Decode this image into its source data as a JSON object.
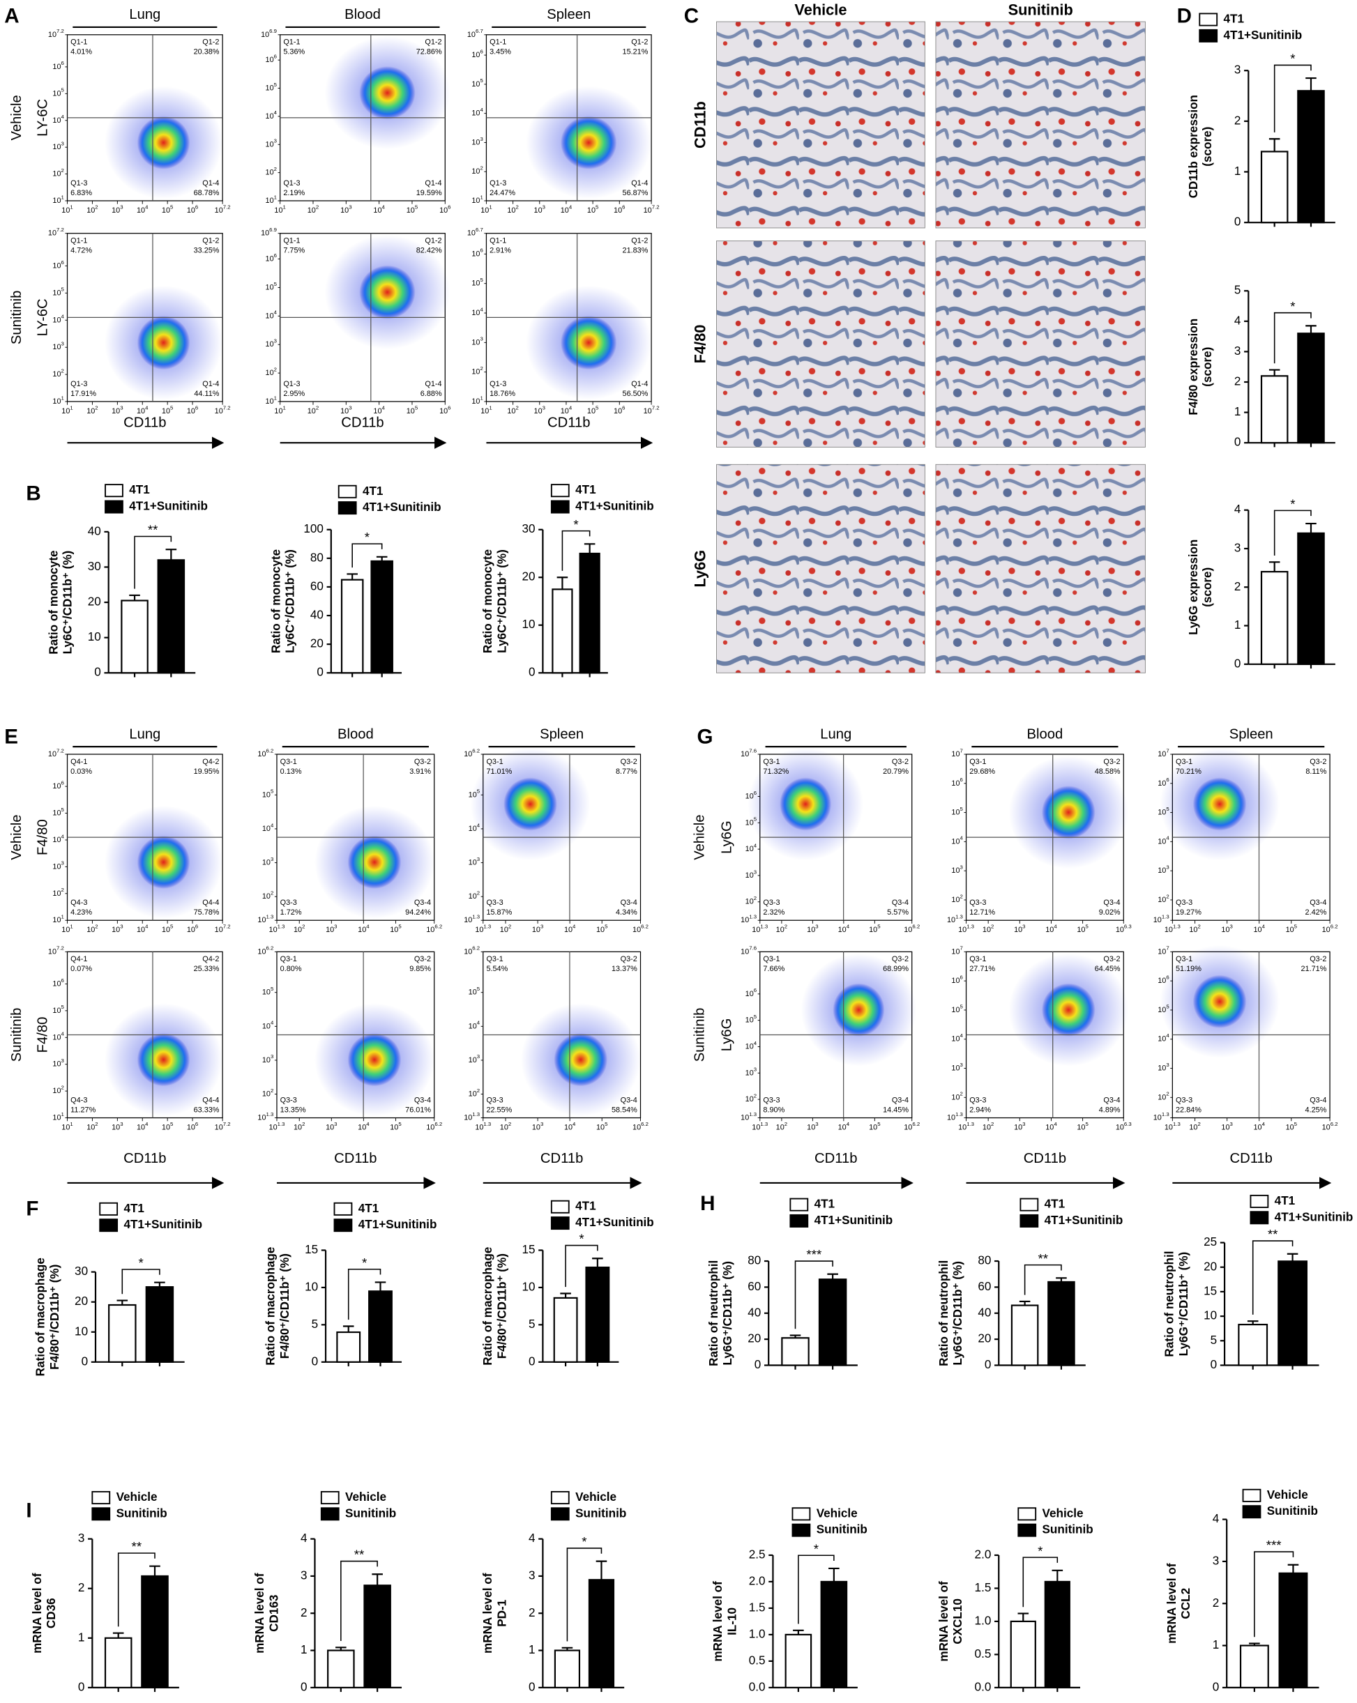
{
  "panel_labels": [
    "A",
    "B",
    "C",
    "D",
    "E",
    "F",
    "G",
    "H",
    "I"
  ],
  "tick_base": "10",
  "flow": [
    {
      "xlabel": "CD11b",
      "columns": [
        {
          "title": "Lung",
          "quadrants": [
            "Q1-1",
            "Q1-2",
            "Q1-3",
            "Q1-4"
          ],
          "xticks": [
            "1",
            "2",
            "3",
            "4",
            "5",
            "6",
            "7.2"
          ],
          "yticks": [
            "1",
            "2",
            "3",
            "4",
            "5",
            "6",
            "7.2"
          ]
        },
        {
          "title": "Blood",
          "quadrants": [
            "Q1-1",
            "Q1-2",
            "Q1-3",
            "Q1-4"
          ],
          "xticks": [
            "1",
            "2",
            "3",
            "4",
            "5",
            "6"
          ],
          "yticks": [
            "1",
            "2",
            "3",
            "4",
            "5",
            "6",
            "6.9"
          ]
        },
        {
          "title": "Spleen",
          "quadrants": [
            "Q1-1",
            "Q1-2",
            "Q1-3",
            "Q1-4"
          ],
          "xticks": [
            "1",
            "2",
            "3",
            "4",
            "5",
            "6",
            "7.2"
          ],
          "yticks": [
            "1",
            "2",
            "3",
            "4",
            "5",
            "6",
            "6.7"
          ]
        }
      ],
      "rows": [
        {
          "label": "Vehicle",
          "ylabel": "LY-6C",
          "plots": [
            [
              "4.01%",
              "20.38%",
              "6.83%",
              "68.78%"
            ],
            [
              "5.36%",
              "72.86%",
              "2.19%",
              "19.59%"
            ],
            [
              "3.45%",
              "15.21%",
              "24.47%",
              "56.87%"
            ]
          ]
        },
        {
          "label": "Sunitinib",
          "ylabel": "LY-6C",
          "plots": [
            [
              "4.72%",
              "33.25%",
              "17.91%",
              "44.11%"
            ],
            [
              "7.75%",
              "82.42%",
              "2.95%",
              "6.88%"
            ],
            [
              "2.91%",
              "21.83%",
              "18.76%",
              "56.50%"
            ]
          ]
        }
      ]
    },
    {
      "xlabel": "CD11b",
      "columns": [
        {
          "title": "Lung",
          "quadrants": [
            "Q4-1",
            "Q4-2",
            "Q4-3",
            "Q4-4"
          ],
          "xticks": [
            "1",
            "2",
            "3",
            "4",
            "5",
            "6",
            "7.2"
          ],
          "yticks": [
            "1",
            "2",
            "3",
            "4",
            "5",
            "6",
            "7.2"
          ]
        },
        {
          "title": "Blood",
          "quadrants": [
            "Q3-1",
            "Q3-2",
            "Q3-3",
            "Q3-4"
          ],
          "xticks": [
            "1.3",
            "2",
            "3",
            "4",
            "5",
            "6.2"
          ],
          "yticks": [
            "1.3",
            "2",
            "3",
            "4",
            "5",
            "6.2"
          ]
        },
        {
          "title": "Spleen",
          "quadrants": [
            "Q3-1",
            "Q3-2",
            "Q3-3",
            "Q3-4"
          ],
          "xticks": [
            "1.3",
            "2",
            "3",
            "4",
            "5",
            "6.2"
          ],
          "yticks": [
            "1.3",
            "2",
            "3",
            "4",
            "5",
            "6.2"
          ]
        }
      ],
      "rows": [
        {
          "label": "Vehicle",
          "ylabel": "F4/80",
          "plots": [
            [
              "0.03%",
              "19.95%",
              "4.23%",
              "75.78%"
            ],
            [
              "0.13%",
              "3.91%",
              "1.72%",
              "94.24%"
            ],
            [
              "71.01%",
              "8.77%",
              "15.87%",
              "4.34%"
            ]
          ]
        },
        {
          "label": "Sunitinib",
          "ylabel": "F4/80",
          "plots": [
            [
              "0.07%",
              "25.33%",
              "11.27%",
              "63.33%"
            ],
            [
              "0.80%",
              "9.85%",
              "13.35%",
              "76.01%"
            ],
            [
              "5.54%",
              "13.37%",
              "22.55%",
              "58.54%"
            ]
          ]
        }
      ]
    },
    {
      "xlabel": "CD11b",
      "columns": [
        {
          "title": "Lung",
          "quadrants": [
            "Q3-1",
            "Q3-2",
            "Q3-3",
            "Q3-4"
          ],
          "xticks": [
            "1.3",
            "2",
            "3",
            "4",
            "5",
            "6.2"
          ],
          "yticks": [
            "1.3",
            "2",
            "3",
            "4",
            "5",
            "6",
            "7.6"
          ]
        },
        {
          "title": "Blood",
          "quadrants": [
            "Q3-1",
            "Q3-2",
            "Q3-3",
            "Q3-4"
          ],
          "xticks": [
            "1.3",
            "2",
            "3",
            "4",
            "5",
            "6.3"
          ],
          "yticks": [
            "1.3",
            "2",
            "3",
            "4",
            "5",
            "6",
            "7"
          ]
        },
        {
          "title": "Spleen",
          "quadrants": [
            "Q3-1",
            "Q3-2",
            "Q3-3",
            "Q3-4"
          ],
          "xticks": [
            "1.3",
            "2",
            "3",
            "4",
            "5",
            "6.2"
          ],
          "yticks": [
            "1.3",
            "2",
            "3",
            "4",
            "5",
            "6",
            "7"
          ]
        }
      ],
      "rows": [
        {
          "label": "Vehicle",
          "ylabel": "Ly6G",
          "plots": [
            [
              "71.32%",
              "20.79%",
              "2.32%",
              "5.57%"
            ],
            [
              "29.68%",
              "48.58%",
              "12.71%",
              "9.02%"
            ],
            [
              "70.21%",
              "8.11%",
              "19.27%",
              "2.42%"
            ]
          ]
        },
        {
          "label": "Sunitinib",
          "ylabel": "Ly6G",
          "plots": [
            [
              "7.66%",
              "68.99%",
              "8.90%",
              "14.45%"
            ],
            [
              "27.71%",
              "64.45%",
              "2.94%",
              "4.89%"
            ],
            [
              "51.19%",
              "21.71%",
              "22.84%",
              "4.25%"
            ]
          ]
        }
      ]
    }
  ],
  "histology": {
    "columns": [
      "Vehicle",
      "Sunitinib"
    ],
    "rows": [
      "CD11b",
      "F4/80",
      "Ly6G"
    ]
  },
  "chart_data": [
    {
      "type": "bar",
      "ylabel": [
        "Ratio of monocyte",
        "Ly6C⁺/CD11b⁺ (%)"
      ],
      "series": [
        {
          "name": "4T1",
          "color": "#ffffff",
          "values": [
            20.5
          ],
          "errors": [
            1.5
          ]
        },
        {
          "name": "4T1+Sunitinib",
          "color": "#000000",
          "values": [
            32
          ],
          "errors": [
            3
          ]
        }
      ],
      "ylim": [
        0,
        40
      ],
      "yticks": [
        0,
        10,
        20,
        30,
        40
      ],
      "significance": "**"
    },
    {
      "type": "bar",
      "ylabel": [
        "Ratio of monocyte",
        "Ly6C⁺/CD11b⁺ (%)"
      ],
      "series": [
        {
          "name": "4T1",
          "color": "#ffffff",
          "values": [
            65
          ],
          "errors": [
            4
          ]
        },
        {
          "name": "4T1+Sunitinib",
          "color": "#000000",
          "values": [
            78
          ],
          "errors": [
            3
          ]
        }
      ],
      "ylim": [
        0,
        100
      ],
      "yticks": [
        0,
        20,
        40,
        60,
        80,
        100
      ],
      "significance": "*"
    },
    {
      "type": "bar",
      "ylabel": [
        "Ratio of monocyte",
        "Ly6C⁺/CD11b⁺ (%)"
      ],
      "series": [
        {
          "name": "4T1",
          "color": "#ffffff",
          "values": [
            17.5
          ],
          "errors": [
            2.5
          ]
        },
        {
          "name": "4T1+Sunitinib",
          "color": "#000000",
          "values": [
            25
          ],
          "errors": [
            2
          ]
        }
      ],
      "ylim": [
        0,
        30
      ],
      "yticks": [
        0,
        10,
        20,
        30
      ],
      "significance": "*"
    },
    {
      "type": "bar",
      "ylabel": [
        "CD11b expression",
        "(score)"
      ],
      "series": [
        {
          "name": "4T1",
          "color": "#ffffff",
          "values": [
            1.4
          ],
          "errors": [
            0.25
          ]
        },
        {
          "name": "4T1+Sunitinib",
          "color": "#000000",
          "values": [
            2.6
          ],
          "errors": [
            0.25
          ]
        }
      ],
      "ylim": [
        0,
        3
      ],
      "yticks": [
        0,
        1,
        2,
        3
      ],
      "significance": "*"
    },
    {
      "type": "bar",
      "ylabel": [
        "F4/80 expression",
        "(score)"
      ],
      "series": [
        {
          "color": "#ffffff",
          "values": [
            2.2
          ],
          "errors": [
            0.2
          ]
        },
        {
          "color": "#000000",
          "values": [
            3.6
          ],
          "errors": [
            0.25
          ]
        }
      ],
      "ylim": [
        0,
        5
      ],
      "yticks": [
        0,
        1,
        2,
        3,
        4,
        5
      ],
      "significance": "*"
    },
    {
      "type": "bar",
      "ylabel": [
        "Ly6G expression",
        "(score)"
      ],
      "series": [
        {
          "color": "#ffffff",
          "values": [
            2.4
          ],
          "errors": [
            0.25
          ]
        },
        {
          "color": "#000000",
          "values": [
            3.4
          ],
          "errors": [
            0.25
          ]
        }
      ],
      "ylim": [
        0,
        4
      ],
      "yticks": [
        0,
        1,
        2,
        3,
        4
      ],
      "significance": "*"
    },
    {
      "type": "bar",
      "ylabel": [
        "Ratio of macrophage",
        "F4/80⁺/CD11b⁺ (%)"
      ],
      "series": [
        {
          "name": "4T1",
          "color": "#ffffff",
          "values": [
            19
          ],
          "errors": [
            1.5
          ]
        },
        {
          "name": "4T1+Sunitinib",
          "color": "#000000",
          "values": [
            25
          ],
          "errors": [
            1.5
          ]
        }
      ],
      "ylim": [
        0,
        30
      ],
      "yticks": [
        0,
        10,
        20,
        30
      ],
      "significance": "*"
    },
    {
      "type": "bar",
      "ylabel": [
        "Ratio of macrophage",
        "F4/80⁺/CD11b⁺ (%)"
      ],
      "series": [
        {
          "name": "4T1",
          "color": "#ffffff",
          "values": [
            4
          ],
          "errors": [
            0.8
          ]
        },
        {
          "name": "4T1+Sunitinib",
          "color": "#000000",
          "values": [
            9.5
          ],
          "errors": [
            1.2
          ]
        }
      ],
      "ylim": [
        0,
        15
      ],
      "yticks": [
        0,
        5,
        10,
        15
      ],
      "significance": "*"
    },
    {
      "type": "bar",
      "ylabel": [
        "Ratio of macrophage",
        "F4/80⁺/CD11b⁺ (%)"
      ],
      "series": [
        {
          "name": "4T1",
          "color": "#ffffff",
          "values": [
            8.6
          ],
          "errors": [
            0.6
          ]
        },
        {
          "name": "4T1+Sunitinib",
          "color": "#000000",
          "values": [
            12.7
          ],
          "errors": [
            1.2
          ]
        }
      ],
      "ylim": [
        0,
        15
      ],
      "yticks": [
        0,
        5,
        10,
        15
      ],
      "significance": "*"
    },
    {
      "type": "bar",
      "ylabel": [
        "Ratio of neutrophil",
        "Ly6G⁺/CD11b⁺ (%)"
      ],
      "series": [
        {
          "name": "4T1",
          "color": "#ffffff",
          "values": [
            21
          ],
          "errors": [
            2
          ]
        },
        {
          "name": "4T1+Sunitinib",
          "color": "#000000",
          "values": [
            66
          ],
          "errors": [
            4
          ]
        }
      ],
      "ylim": [
        0,
        80
      ],
      "yticks": [
        0,
        20,
        40,
        60,
        80
      ],
      "significance": "***"
    },
    {
      "type": "bar",
      "ylabel": [
        "Ratio of neutrophil",
        "Ly6G⁺/CD11b⁺ (%)"
      ],
      "series": [
        {
          "name": "4T1",
          "color": "#ffffff",
          "values": [
            46
          ],
          "errors": [
            3
          ]
        },
        {
          "name": "4T1+Sunitinib",
          "color": "#000000",
          "values": [
            64
          ],
          "errors": [
            3
          ]
        }
      ],
      "ylim": [
        0,
        80
      ],
      "yticks": [
        0,
        20,
        40,
        60,
        80
      ],
      "significance": "**"
    },
    {
      "type": "bar",
      "ylabel": [
        "Ratio of neutrophil",
        "Ly6G⁺/CD11b⁺ (%)"
      ],
      "series": [
        {
          "name": "4T1",
          "color": "#ffffff",
          "values": [
            8.3
          ],
          "errors": [
            0.7
          ]
        },
        {
          "name": "4T1+Sunitinib",
          "color": "#000000",
          "values": [
            21.2
          ],
          "errors": [
            1.5
          ]
        }
      ],
      "ylim": [
        0,
        25
      ],
      "yticks": [
        0,
        5,
        10,
        15,
        20,
        25
      ],
      "significance": "**"
    },
    {
      "type": "bar",
      "ylabel": [
        "mRNA level of",
        "CD36"
      ],
      "series": [
        {
          "name": "Vehicle",
          "color": "#ffffff",
          "values": [
            1
          ],
          "errors": [
            0.1
          ]
        },
        {
          "name": "Sunitinib",
          "color": "#000000",
          "values": [
            2.25
          ],
          "errors": [
            0.2
          ]
        }
      ],
      "ylim": [
        0,
        3
      ],
      "yticks": [
        0,
        1,
        2,
        3
      ],
      "significance": "**"
    },
    {
      "type": "bar",
      "ylabel": [
        "mRNA level of",
        "CD163"
      ],
      "series": [
        {
          "name": "Vehicle",
          "color": "#ffffff",
          "values": [
            1
          ],
          "errors": [
            0.08
          ]
        },
        {
          "name": "Sunitinib",
          "color": "#000000",
          "values": [
            2.75
          ],
          "errors": [
            0.3
          ]
        }
      ],
      "ylim": [
        0,
        4
      ],
      "yticks": [
        0,
        1,
        2,
        3,
        4
      ],
      "significance": "**"
    },
    {
      "type": "bar",
      "ylabel": [
        "mRNA level of",
        "PD-1"
      ],
      "series": [
        {
          "name": "Vehicle",
          "color": "#ffffff",
          "values": [
            1
          ],
          "errors": [
            0.07
          ]
        },
        {
          "name": "Sunitinib",
          "color": "#000000",
          "values": [
            2.9
          ],
          "errors": [
            0.5
          ]
        }
      ],
      "ylim": [
        0,
        4
      ],
      "yticks": [
        0,
        1,
        2,
        3,
        4
      ],
      "significance": "*"
    },
    {
      "type": "bar",
      "ylabel": [
        "mRNA level of",
        "IL-10"
      ],
      "series": [
        {
          "name": "Vehicle",
          "color": "#ffffff",
          "values": [
            1
          ],
          "errors": [
            0.08
          ]
        },
        {
          "name": "Sunitinib",
          "color": "#000000",
          "values": [
            2
          ],
          "errors": [
            0.25
          ]
        }
      ],
      "ylim": [
        0,
        2.5
      ],
      "yticks": [
        {
          "value": 0,
          "label": "0.0"
        },
        0.5,
        {
          "value": 1,
          "label": "1.0"
        },
        1.5,
        {
          "value": 2,
          "label": "2.0"
        },
        2.5
      ],
      "significance": "*"
    },
    {
      "type": "bar",
      "ylabel": [
        "mRNA level of",
        "CXCL10"
      ],
      "series": [
        {
          "name": "Vehicle",
          "color": "#ffffff",
          "values": [
            1
          ],
          "errors": [
            0.12
          ]
        },
        {
          "name": "Sunitinib",
          "color": "#000000",
          "values": [
            1.6
          ],
          "errors": [
            0.17
          ]
        }
      ],
      "ylim": [
        0,
        2
      ],
      "yticks": [
        {
          "value": 0,
          "label": "0.0"
        },
        0.5,
        {
          "value": 1,
          "label": "1.0"
        },
        1.5,
        {
          "value": 2,
          "label": "2.0"
        }
      ],
      "significance": "*"
    },
    {
      "type": "bar",
      "ylabel": [
        "mRNA level of",
        "CCL2"
      ],
      "series": [
        {
          "name": "Vehicle",
          "color": "#ffffff",
          "values": [
            1
          ],
          "errors": [
            0.05
          ]
        },
        {
          "name": "Sunitinib",
          "color": "#000000",
          "values": [
            2.72
          ],
          "errors": [
            0.2
          ]
        }
      ],
      "ylim": [
        0,
        4
      ],
      "yticks": [
        0,
        1,
        2,
        3,
        4
      ],
      "significance": "***"
    }
  ]
}
